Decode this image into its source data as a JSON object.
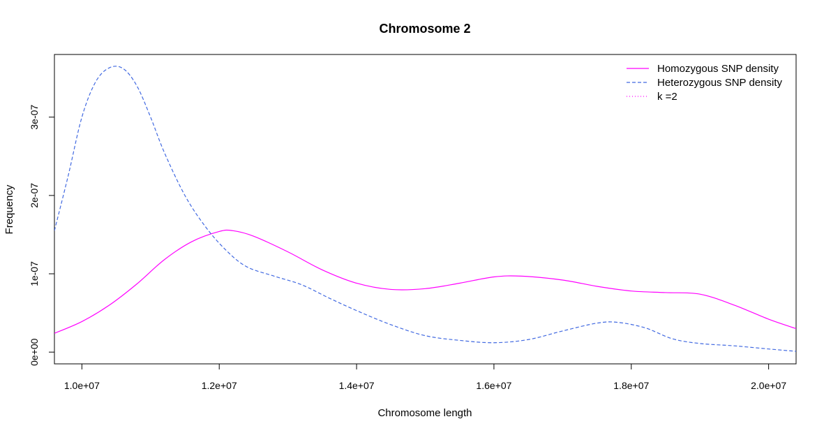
{
  "chart_data": {
    "type": "line",
    "title": "Chromosome 2",
    "xlabel": "Chromosome length",
    "ylabel": "Frequency",
    "xlim": [
      9600000,
      20400000
    ],
    "ylim": [
      -1.5e-08,
      3.8e-07
    ],
    "x_ticks": [
      {
        "value": 10000000,
        "label": "1.0e+07"
      },
      {
        "value": 12000000,
        "label": "1.2e+07"
      },
      {
        "value": 14000000,
        "label": "1.4e+07"
      },
      {
        "value": 16000000,
        "label": "1.6e+07"
      },
      {
        "value": 18000000,
        "label": "1.8e+07"
      },
      {
        "value": 20000000,
        "label": "2.0e+07"
      }
    ],
    "y_ticks": [
      {
        "value": 0,
        "label": "0e+00"
      },
      {
        "value": 1e-07,
        "label": "1e-07"
      },
      {
        "value": 2e-07,
        "label": "2e-07"
      },
      {
        "value": 3e-07,
        "label": "3e-07"
      }
    ],
    "grid": false,
    "legend_position": "top-right",
    "legend": [
      {
        "label": "Homozygous SNP density",
        "color": "#ff00ff",
        "style": "solid"
      },
      {
        "label": "Heterozygous SNP density",
        "color": "#4169e1",
        "style": "dashed"
      },
      {
        "label": "k =2",
        "color": "#ff00ff",
        "style": "dotted"
      }
    ],
    "series": [
      {
        "name": "Homozygous SNP density",
        "color": "#ff00ff",
        "style": "solid",
        "points": [
          [
            9600000,
            2.4e-08
          ],
          [
            10000000,
            3.9e-08
          ],
          [
            10400000,
            6e-08
          ],
          [
            10800000,
            8.7e-08
          ],
          [
            11200000,
            1.18e-07
          ],
          [
            11600000,
            1.41e-07
          ],
          [
            12000000,
            1.54e-07
          ],
          [
            12200000,
            1.55e-07
          ],
          [
            12500000,
            1.48e-07
          ],
          [
            13000000,
            1.28e-07
          ],
          [
            13500000,
            1.05e-07
          ],
          [
            14000000,
            8.8e-08
          ],
          [
            14500000,
            8e-08
          ],
          [
            15000000,
            8.1e-08
          ],
          [
            15500000,
            8.8e-08
          ],
          [
            16000000,
            9.6e-08
          ],
          [
            16400000,
            9.7e-08
          ],
          [
            17000000,
            9.2e-08
          ],
          [
            17500000,
            8.4e-08
          ],
          [
            18000000,
            7.8e-08
          ],
          [
            18500000,
            7.6e-08
          ],
          [
            19000000,
            7.4e-08
          ],
          [
            19500000,
            6e-08
          ],
          [
            20000000,
            4.2e-08
          ],
          [
            20400000,
            3e-08
          ]
        ]
      },
      {
        "name": "Heterozygous SNP density",
        "color": "#4169e1",
        "style": "dashed",
        "points": [
          [
            9600000,
            1.55e-07
          ],
          [
            9800000,
            2.25e-07
          ],
          [
            10000000,
            3e-07
          ],
          [
            10200000,
            3.45e-07
          ],
          [
            10400000,
            3.63e-07
          ],
          [
            10600000,
            3.62e-07
          ],
          [
            10800000,
            3.4e-07
          ],
          [
            11000000,
            3e-07
          ],
          [
            11200000,
            2.55e-07
          ],
          [
            11500000,
            2e-07
          ],
          [
            11800000,
            1.6e-07
          ],
          [
            12100000,
            1.3e-07
          ],
          [
            12400000,
            1.09e-07
          ],
          [
            12800000,
            9.7e-08
          ],
          [
            13200000,
            8.6e-08
          ],
          [
            13600000,
            6.9e-08
          ],
          [
            14000000,
            5.3e-08
          ],
          [
            14500000,
            3.5e-08
          ],
          [
            15000000,
            2.1e-08
          ],
          [
            15500000,
            1.5e-08
          ],
          [
            16000000,
            1.2e-08
          ],
          [
            16500000,
            1.6e-08
          ],
          [
            17000000,
            2.7e-08
          ],
          [
            17500000,
            3.7e-08
          ],
          [
            17800000,
            3.8e-08
          ],
          [
            18200000,
            3.1e-08
          ],
          [
            18600000,
            1.7e-08
          ],
          [
            19000000,
            1.1e-08
          ],
          [
            19500000,
            8e-09
          ],
          [
            20000000,
            4e-09
          ],
          [
            20400000,
            1e-09
          ]
        ]
      }
    ]
  }
}
